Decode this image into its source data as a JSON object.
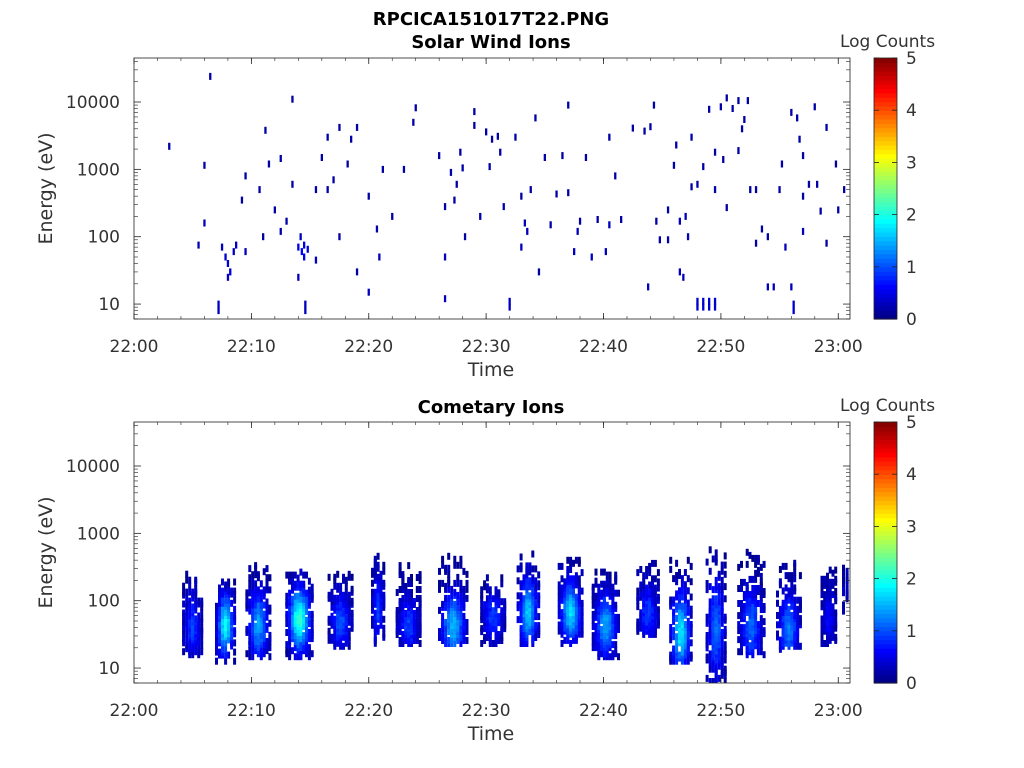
{
  "figure": {
    "title": "RPCICA151017T22.PNG"
  },
  "chart_data": [
    {
      "type": "heatmap",
      "title": "Solar Wind Ions",
      "xlabel": "Time",
      "ylabel": "Energy (eV)",
      "x_ticks": [
        "22:00",
        "22:10",
        "22:20",
        "22:30",
        "22:40",
        "22:50",
        "23:00"
      ],
      "y_ticks": [
        "10",
        "100",
        "1000",
        "10000"
      ],
      "y_scale": "log",
      "ylim": [
        6,
        45000
      ],
      "xlim_minutes": [
        0,
        61
      ],
      "colorbar": {
        "label": "Log Counts",
        "ticks": [
          "0",
          "1",
          "2",
          "3",
          "4",
          "5"
        ],
        "range": [
          0,
          5
        ],
        "colormap": "jet"
      },
      "cells": [
        [
          3,
          2200,
          0.2
        ],
        [
          6.5,
          24000,
          0.2
        ],
        [
          6,
          1150,
          0.2
        ],
        [
          5.5,
          75,
          0.3
        ],
        [
          6,
          160,
          0.3
        ],
        [
          7.2,
          10,
          0.3
        ],
        [
          7.2,
          8,
          0.3
        ],
        [
          7.5,
          70,
          0.3
        ],
        [
          7.8,
          50,
          0.4
        ],
        [
          8,
          40,
          0.4
        ],
        [
          8.2,
          30,
          0.4
        ],
        [
          8,
          25,
          0.4
        ],
        [
          8.5,
          60,
          0.3
        ],
        [
          8.7,
          75,
          0.3
        ],
        [
          9.5,
          60,
          0.3
        ],
        [
          9.2,
          350,
          0.2
        ],
        [
          9.5,
          800,
          0.2
        ],
        [
          10.7,
          500,
          0.2
        ],
        [
          11,
          100,
          0.2
        ],
        [
          11.2,
          3800,
          0.2
        ],
        [
          11.5,
          1200,
          0.2
        ],
        [
          12,
          250,
          0.2
        ],
        [
          12.5,
          1450,
          0.2
        ],
        [
          12.5,
          120,
          0.2
        ],
        [
          13,
          170,
          0.2
        ],
        [
          13.5,
          11000,
          0.2
        ],
        [
          13.5,
          600,
          0.2
        ],
        [
          14,
          70,
          0.5
        ],
        [
          14.3,
          60,
          0.6
        ],
        [
          14.5,
          50,
          0.5
        ],
        [
          14.5,
          75,
          0.5
        ],
        [
          14.8,
          65,
          0.5
        ],
        [
          14.2,
          100,
          0.3
        ],
        [
          14,
          25,
          0.3
        ],
        [
          14.6,
          10,
          0.3
        ],
        [
          14.6,
          8,
          0.3
        ],
        [
          15.5,
          45,
          0.3
        ],
        [
          15.5,
          500,
          0.2
        ],
        [
          16,
          1500,
          0.2
        ],
        [
          16.5,
          500,
          0.2
        ],
        [
          16.5,
          3000,
          0.2
        ],
        [
          17,
          700,
          0.2
        ],
        [
          17.5,
          4200,
          0.2
        ],
        [
          17.5,
          100,
          0.2
        ],
        [
          18.2,
          1200,
          0.2
        ],
        [
          18.5,
          2800,
          0.2
        ],
        [
          19,
          4200,
          0.2
        ],
        [
          19,
          30,
          0.2
        ],
        [
          20,
          400,
          0.2
        ],
        [
          20,
          15,
          0.3
        ],
        [
          20.7,
          130,
          0.2
        ],
        [
          20.9,
          50,
          0.3
        ],
        [
          21.2,
          1000,
          0.2
        ],
        [
          22,
          200,
          0.2
        ],
        [
          23,
          1000,
          0.2
        ],
        [
          23.8,
          5000,
          0.2
        ],
        [
          24,
          8200,
          0.2
        ],
        [
          26,
          1600,
          0.2
        ],
        [
          26.5,
          50,
          0.3
        ],
        [
          26.5,
          12,
          0.3
        ],
        [
          26.5,
          280,
          0.2
        ],
        [
          27,
          900,
          0.2
        ],
        [
          27.3,
          350,
          0.2
        ],
        [
          27.5,
          600,
          0.2
        ],
        [
          27.8,
          1800,
          0.2
        ],
        [
          28,
          1050,
          0.2
        ],
        [
          28.2,
          100,
          0.2
        ],
        [
          29,
          7200,
          0.2
        ],
        [
          29,
          4500,
          0.2
        ],
        [
          29.5,
          200,
          0.2
        ],
        [
          30,
          3600,
          0.2
        ],
        [
          30.3,
          1100,
          0.2
        ],
        [
          30.5,
          2800,
          0.2
        ],
        [
          31,
          3100,
          0.2
        ],
        [
          31.2,
          1800,
          0.2
        ],
        [
          31.5,
          280,
          0.2
        ],
        [
          32,
          11,
          0.3
        ],
        [
          32,
          9,
          0.3
        ],
        [
          32.5,
          3000,
          0.2
        ],
        [
          33,
          400,
          0.2
        ],
        [
          33,
          70,
          0.3
        ],
        [
          33.3,
          160,
          0.3
        ],
        [
          33.5,
          120,
          0.3
        ],
        [
          33.8,
          500,
          0.2
        ],
        [
          34.2,
          5800,
          0.2
        ],
        [
          34.5,
          30,
          0.2
        ],
        [
          35,
          1500,
          0.2
        ],
        [
          35.5,
          150,
          0.2
        ],
        [
          36,
          430,
          0.2
        ],
        [
          36.5,
          1600,
          0.2
        ],
        [
          37,
          9000,
          0.2
        ],
        [
          37,
          450,
          0.2
        ],
        [
          37.5,
          60,
          0.3
        ],
        [
          37.8,
          120,
          0.3
        ],
        [
          38,
          170,
          0.2
        ],
        [
          38.5,
          1500,
          0.2
        ],
        [
          39,
          50,
          0.3
        ],
        [
          39.5,
          180,
          0.2
        ],
        [
          40.2,
          60,
          0.3
        ],
        [
          40.5,
          150,
          0.3
        ],
        [
          40.5,
          3000,
          0.2
        ],
        [
          41,
          800,
          0.2
        ],
        [
          41.5,
          180,
          0.2
        ],
        [
          42.5,
          4100,
          0.2
        ],
        [
          43.5,
          3700,
          0.2
        ],
        [
          43.8,
          18,
          0.3
        ],
        [
          44,
          4300,
          0.2
        ],
        [
          44.3,
          9000,
          0.2
        ],
        [
          44.5,
          170,
          0.2
        ],
        [
          44.8,
          90,
          0.2
        ],
        [
          45.5,
          250,
          0.2
        ],
        [
          45.5,
          90,
          0.2
        ],
        [
          46,
          1150,
          0.2
        ],
        [
          46.2,
          2300,
          0.2
        ],
        [
          46.5,
          170,
          0.3
        ],
        [
          46.5,
          30,
          0.3
        ],
        [
          46.8,
          25,
          0.3
        ],
        [
          47,
          200,
          0.3
        ],
        [
          47.2,
          100,
          0.3
        ],
        [
          47.5,
          3000,
          0.2
        ],
        [
          47.5,
          550,
          0.2
        ],
        [
          48,
          11,
          0.4
        ],
        [
          48,
          9,
          0.4
        ],
        [
          48.5,
          11,
          0.4
        ],
        [
          48.5,
          9,
          0.4
        ],
        [
          49,
          11,
          0.4
        ],
        [
          49,
          9,
          0.4
        ],
        [
          49.5,
          11,
          0.4
        ],
        [
          49.5,
          9,
          0.4
        ],
        [
          48,
          600,
          0.2
        ],
        [
          48.5,
          1100,
          0.2
        ],
        [
          49,
          7800,
          0.2
        ],
        [
          49.5,
          1800,
          0.2
        ],
        [
          49.5,
          500,
          0.2
        ],
        [
          50,
          8500,
          0.2
        ],
        [
          50.2,
          1400,
          0.2
        ],
        [
          50.5,
          11500,
          0.2
        ],
        [
          50.5,
          270,
          0.2
        ],
        [
          51,
          8000,
          0.2
        ],
        [
          51.5,
          10500,
          0.2
        ],
        [
          51.5,
          1900,
          0.2
        ],
        [
          51.8,
          4000,
          0.2
        ],
        [
          52,
          5500,
          0.2
        ],
        [
          52.3,
          10500,
          0.2
        ],
        [
          52.5,
          500,
          0.2
        ],
        [
          53,
          80,
          0.2
        ],
        [
          53,
          500,
          0.2
        ],
        [
          53.5,
          130,
          0.2
        ],
        [
          54,
          100,
          0.2
        ],
        [
          54,
          18,
          0.3
        ],
        [
          54.5,
          18,
          0.3
        ],
        [
          55,
          500,
          0.2
        ],
        [
          55.2,
          1200,
          0.2
        ],
        [
          55.5,
          70,
          0.3
        ],
        [
          56,
          18,
          0.3
        ],
        [
          56,
          7000,
          0.2
        ],
        [
          56.2,
          10,
          0.4
        ],
        [
          56.2,
          8,
          0.4
        ],
        [
          56.5,
          5800,
          0.2
        ],
        [
          56.7,
          2800,
          0.2
        ],
        [
          57,
          1600,
          0.2
        ],
        [
          57,
          400,
          0.2
        ],
        [
          57,
          120,
          0.3
        ],
        [
          57.5,
          600,
          0.2
        ],
        [
          58,
          8500,
          0.2
        ],
        [
          58.2,
          600,
          0.2
        ],
        [
          58.5,
          240,
          0.2
        ],
        [
          59,
          4200,
          0.2
        ],
        [
          59,
          80,
          0.2
        ],
        [
          59.8,
          1200,
          0.2
        ],
        [
          60,
          250,
          0.2
        ],
        [
          60.5,
          500,
          0.2
        ]
      ]
    },
    {
      "type": "heatmap",
      "title": "Cometary Ions",
      "xlabel": "Time",
      "ylabel": "Energy (eV)",
      "x_ticks": [
        "22:00",
        "22:10",
        "22:20",
        "22:30",
        "22:40",
        "22:50",
        "23:00"
      ],
      "y_ticks": [
        "10",
        "100",
        "1000",
        "10000"
      ],
      "y_scale": "log",
      "ylim": [
        6,
        45000
      ],
      "xlim_minutes": [
        0,
        61
      ],
      "colorbar": {
        "label": "Log Counts",
        "ticks": [
          "0",
          "1",
          "2",
          "3",
          "4",
          "5"
        ],
        "range": [
          0,
          5
        ],
        "colormap": "jet"
      },
      "bursts": [
        {
          "t": 5.0,
          "w": 1.8,
          "lo": 15,
          "hi": 260,
          "peak": 0.8,
          "peak_e": 45
        },
        {
          "t": 7.8,
          "w": 1.8,
          "lo": 12,
          "hi": 200,
          "peak": 1.8,
          "peak_e": 45
        },
        {
          "t": 10.6,
          "w": 2.2,
          "lo": 14,
          "hi": 350,
          "peak": 1.3,
          "peak_e": 45
        },
        {
          "t": 14.1,
          "w": 2.4,
          "lo": 14,
          "hi": 280,
          "peak": 2.0,
          "peak_e": 55
        },
        {
          "t": 17.6,
          "w": 2.2,
          "lo": 20,
          "hi": 260,
          "peak": 0.9,
          "peak_e": 50
        },
        {
          "t": 20.8,
          "w": 1.2,
          "lo": 20,
          "hi": 480,
          "peak": 0.8,
          "peak_e": 80
        },
        {
          "t": 23.4,
          "w": 2.2,
          "lo": 22,
          "hi": 350,
          "peak": 0.8,
          "peak_e": 45
        },
        {
          "t": 27.2,
          "w": 2.6,
          "lo": 22,
          "hi": 480,
          "peak": 1.4,
          "peak_e": 45
        },
        {
          "t": 30.6,
          "w": 2.2,
          "lo": 22,
          "hi": 230,
          "peak": 0.8,
          "peak_e": 60
        },
        {
          "t": 33.6,
          "w": 2.0,
          "lo": 22,
          "hi": 520,
          "peak": 1.5,
          "peak_e": 70
        },
        {
          "t": 37.2,
          "w": 2.2,
          "lo": 22,
          "hi": 420,
          "peak": 1.6,
          "peak_e": 70
        },
        {
          "t": 40.2,
          "w": 2.4,
          "lo": 14,
          "hi": 280,
          "peak": 1.3,
          "peak_e": 45
        },
        {
          "t": 43.8,
          "w": 2.0,
          "lo": 30,
          "hi": 420,
          "peak": 0.8,
          "peak_e": 70
        },
        {
          "t": 46.6,
          "w": 2.0,
          "lo": 12,
          "hi": 420,
          "peak": 1.7,
          "peak_e": 35
        },
        {
          "t": 49.6,
          "w": 1.8,
          "lo": 6,
          "hi": 600,
          "peak": 1.0,
          "peak_e": 40
        },
        {
          "t": 52.6,
          "w": 2.4,
          "lo": 15,
          "hi": 550,
          "peak": 1.0,
          "peak_e": 45
        },
        {
          "t": 55.8,
          "w": 2.2,
          "lo": 18,
          "hi": 420,
          "peak": 1.1,
          "peak_e": 40
        },
        {
          "t": 59.2,
          "w": 1.4,
          "lo": 22,
          "hi": 300,
          "peak": 0.5,
          "peak_e": 60
        },
        {
          "t": 60.6,
          "w": 0.6,
          "lo": 60,
          "hi": 320,
          "peak": 0.3,
          "peak_e": 150
        }
      ]
    }
  ]
}
